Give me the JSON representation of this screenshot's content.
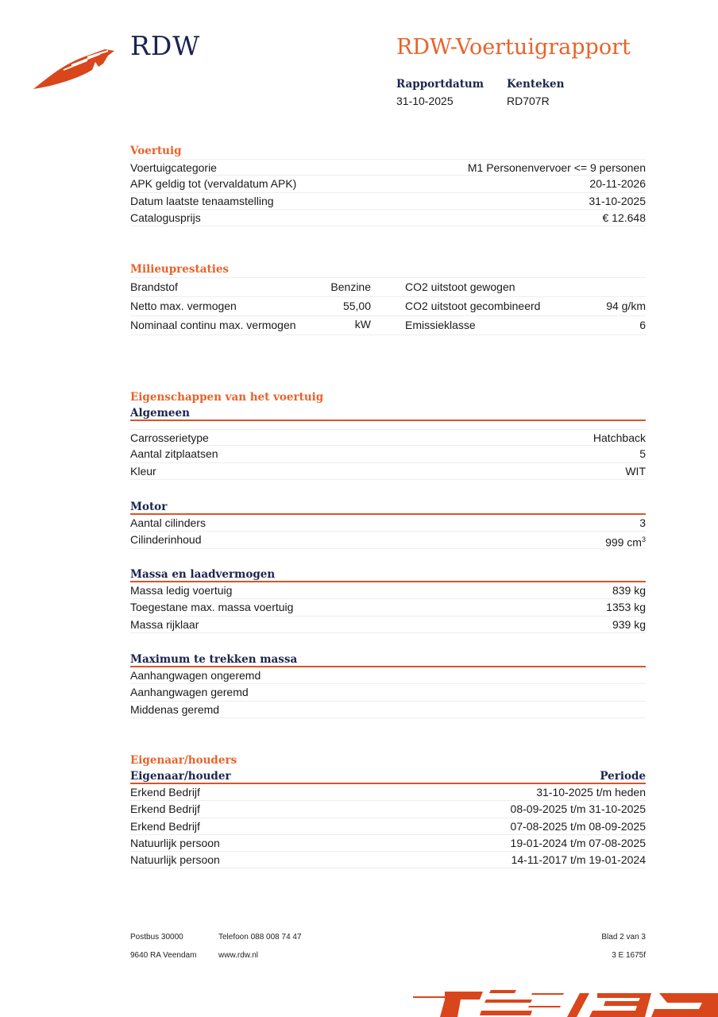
{
  "header": {
    "logo_text": "RDW",
    "title": "RDW-Voertuigrapport",
    "report_date_label": "Rapportdatum",
    "report_date": "31-10-2025",
    "plate_label": "Kenteken",
    "plate": "RD707R"
  },
  "voertuig": {
    "title": "Voertuig",
    "rows": [
      {
        "label": "Voertuigcategorie",
        "value": "M1 Personenvervoer <= 9 personen"
      },
      {
        "label": "APK geldig tot (vervaldatum APK)",
        "value": "20-11-2026"
      },
      {
        "label": "Datum laatste tenaamstelling",
        "value": "31-10-2025"
      },
      {
        "label": "Catalogusprijs",
        "value": "€ 12.648"
      }
    ]
  },
  "milieu": {
    "title": "Milieuprestaties",
    "rows": [
      {
        "label": "Brandstof",
        "value": "Benzine",
        "label2": "CO2 uitstoot gewogen",
        "value2": ""
      },
      {
        "label": "Netto max. vermogen",
        "value": "55,00 kW",
        "label2": "CO2 uitstoot gecombineerd",
        "value2": "94 g/km"
      },
      {
        "label": "Nominaal continu max. vermogen",
        "value": "",
        "label2": "Emissieklasse",
        "value2": "6"
      }
    ]
  },
  "eigenschappen": {
    "title": "Eigenschappen van het voertuig",
    "algemeen": {
      "title": "Algemeen",
      "rows": [
        {
          "label": "Carrosserietype",
          "value": "Hatchback"
        },
        {
          "label": "Aantal zitplaatsen",
          "value": "5"
        },
        {
          "label": "Kleur",
          "value": "WIT"
        }
      ]
    },
    "motor": {
      "title": "Motor",
      "rows": [
        {
          "label": "Aantal cilinders",
          "value": "3"
        },
        {
          "label": "Cilinderinhoud",
          "value": "999 cm",
          "sup": "3"
        }
      ]
    },
    "massa": {
      "title": "Massa en laadvermogen",
      "rows": [
        {
          "label": "Massa ledig voertuig",
          "value": "839 kg"
        },
        {
          "label": "Toegestane max. massa voertuig",
          "value": "1353 kg"
        },
        {
          "label": "Massa rijklaar",
          "value": "939 kg"
        }
      ]
    },
    "trekken": {
      "title": "Maximum te trekken massa",
      "rows": [
        {
          "label": "Aanhangwagen ongeremd",
          "value": ""
        },
        {
          "label": "Aanhangwagen geremd",
          "value": ""
        },
        {
          "label": "Middenas geremd",
          "value": ""
        }
      ]
    }
  },
  "eigenaar": {
    "title": "Eigenaar/houders",
    "col1": "Eigenaar/houder",
    "col2": "Periode",
    "rows": [
      {
        "label": "Erkend Bedrijf",
        "value": "31-10-2025 t/m heden"
      },
      {
        "label": "Erkend Bedrijf",
        "value": "08-09-2025 t/m 31-10-2025"
      },
      {
        "label": "Erkend Bedrijf",
        "value": "07-08-2025 t/m 08-09-2025"
      },
      {
        "label": "Natuurlijk persoon",
        "value": "19-01-2024 t/m 07-08-2025"
      },
      {
        "label": "Natuurlijk persoon",
        "value": "14-11-2017 t/m 19-01-2024"
      }
    ]
  },
  "footer": {
    "postbus": "Postbus 30000",
    "address": "9640 RA Veendam",
    "phone": "Telefoon 088 008 74 47",
    "web": "www.rdw.nl",
    "page": "Blad 2 van 3",
    "code": "3 E 1675f"
  },
  "colors": {
    "accent": "#e8622a",
    "navy": "#1b2450"
  }
}
